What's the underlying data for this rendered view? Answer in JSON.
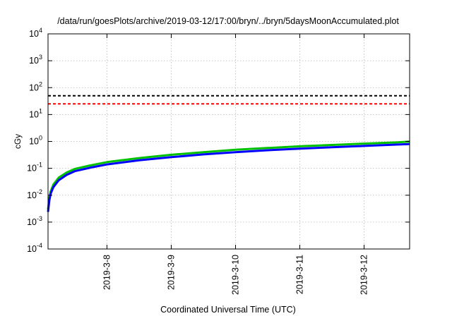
{
  "chart_data": {
    "type": "line",
    "title": "/data/run/goesPlots/archive/2019-03-12/17:00/bryn/../bryn/5daysMoonAccumulated.plot",
    "xlabel": "Coordinated Universal Time (UTC)",
    "ylabel": "cGy",
    "y_scale": "log",
    "ylim": [
      0.0001,
      10000
    ],
    "xlim": [
      "2019-03-07 02:00",
      "2019-03-12 17:00"
    ],
    "grid": true,
    "y_ticks": [
      {
        "base": "10",
        "exp": "-4",
        "value": 0.0001
      },
      {
        "base": "10",
        "exp": "-3",
        "value": 0.001
      },
      {
        "base": "10",
        "exp": "-2",
        "value": 0.01
      },
      {
        "base": "10",
        "exp": "-1",
        "value": 0.1
      },
      {
        "base": "10",
        "exp": "0",
        "value": 1
      },
      {
        "base": "10",
        "exp": "1",
        "value": 10
      },
      {
        "base": "10",
        "exp": "2",
        "value": 100
      },
      {
        "base": "10",
        "exp": "3",
        "value": 1000
      },
      {
        "base": "10",
        "exp": "4",
        "value": 10000
      }
    ],
    "x_ticks": [
      {
        "label": "2019-3-8",
        "value": "2019-03-08 00:00"
      },
      {
        "label": "2019-3-9",
        "value": "2019-03-09 00:00"
      },
      {
        "label": "2019-3-10",
        "value": "2019-03-10 00:00"
      },
      {
        "label": "2019-3-11",
        "value": "2019-03-11 00:00"
      },
      {
        "label": "2019-3-12",
        "value": "2019-03-12 00:00"
      }
    ],
    "reference_lines": [
      {
        "y": 50,
        "color": "#000000",
        "style": "dashed"
      },
      {
        "y": 25,
        "color": "#ff0000",
        "style": "dashed"
      }
    ],
    "series": [
      {
        "color": "#00c000",
        "x": [
          "2019-03-07 02:00",
          "2019-03-07 02:30",
          "2019-03-07 03:00",
          "2019-03-07 04:00",
          "2019-03-07 06:00",
          "2019-03-07 09:00",
          "2019-03-07 12:00",
          "2019-03-07 18:00",
          "2019-03-08 00:00",
          "2019-03-08 12:00",
          "2019-03-09 00:00",
          "2019-03-09 12:00",
          "2019-03-10 00:00",
          "2019-03-10 12:00",
          "2019-03-11 00:00",
          "2019-03-11 12:00",
          "2019-03-12 00:00",
          "2019-03-12 12:00",
          "2019-03-12 17:00"
        ],
        "y": [
          0.003,
          0.008,
          0.014,
          0.025,
          0.045,
          0.07,
          0.095,
          0.13,
          0.17,
          0.24,
          0.32,
          0.4,
          0.49,
          0.57,
          0.66,
          0.74,
          0.83,
          0.92,
          0.98
        ]
      },
      {
        "color": "#0000ff",
        "x": [
          "2019-03-07 02:00",
          "2019-03-07 02:30",
          "2019-03-07 03:00",
          "2019-03-07 04:00",
          "2019-03-07 06:00",
          "2019-03-07 09:00",
          "2019-03-07 12:00",
          "2019-03-07 18:00",
          "2019-03-08 00:00",
          "2019-03-08 12:00",
          "2019-03-09 00:00",
          "2019-03-09 12:00",
          "2019-03-10 00:00",
          "2019-03-10 12:00",
          "2019-03-11 00:00",
          "2019-03-11 12:00",
          "2019-03-12 00:00",
          "2019-03-12 12:00",
          "2019-03-12 17:00"
        ],
        "y": [
          0.0024,
          0.0065,
          0.0115,
          0.02,
          0.036,
          0.057,
          0.078,
          0.107,
          0.14,
          0.198,
          0.26,
          0.33,
          0.4,
          0.47,
          0.54,
          0.61,
          0.68,
          0.76,
          0.8
        ]
      }
    ]
  }
}
